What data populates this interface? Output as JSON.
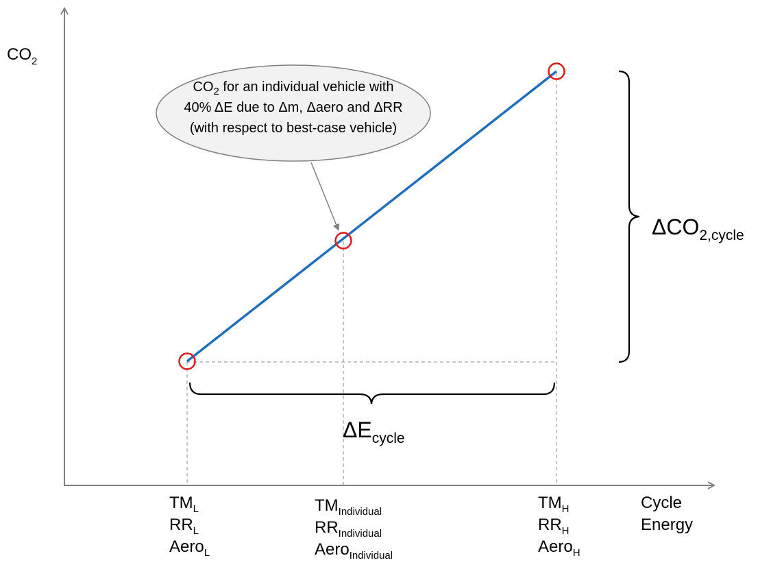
{
  "axes": {
    "y_label": {
      "main": "CO",
      "sub": "2"
    },
    "x_label": [
      "Cycle",
      "Energy"
    ]
  },
  "callout": {
    "line1": {
      "main": "CO",
      "sub": "2",
      "rest": " for an individual vehicle with"
    },
    "line2": "40% ΔE due to Δm, Δaero and ΔRR",
    "line3": "(with respect to best-case vehicle)"
  },
  "x_ticks": {
    "low": [
      {
        "main": "TM",
        "sub": "L"
      },
      {
        "main": "RR",
        "sub": "L"
      },
      {
        "main": "Aero",
        "sub": "L"
      }
    ],
    "individual": [
      {
        "main": "TM",
        "sub": "Individual"
      },
      {
        "main": "RR",
        "sub": "Individual"
      },
      {
        "main": "Aero",
        "sub": "Individual"
      }
    ],
    "high": [
      {
        "main": "TM",
        "sub": "H"
      },
      {
        "main": "RR",
        "sub": "H"
      },
      {
        "main": "Aero",
        "sub": "H"
      }
    ]
  },
  "delta_co2": {
    "main": "ΔCO",
    "sub": "2,cycle"
  },
  "delta_e": {
    "main": "ΔE",
    "sub": "cycle"
  },
  "colors": {
    "line": "#1f6fbf",
    "marker": "#e01b1b",
    "axis": "#808080",
    "guide": "#8c8c8c",
    "callout_fill": "#f2f2f2",
    "callout_stroke": "#7f7f7f"
  }
}
